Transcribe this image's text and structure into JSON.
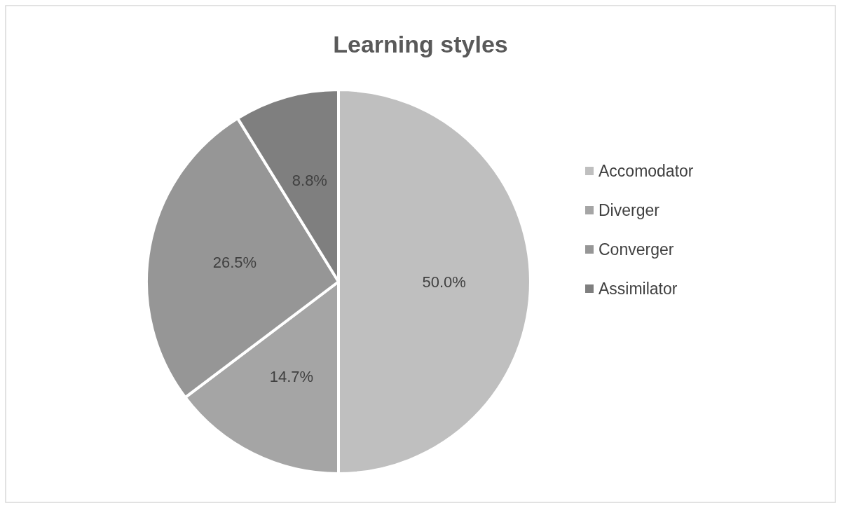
{
  "chart_data": {
    "type": "pie",
    "title": "Learning styles",
    "categories": [
      "Accomodator",
      "Diverger",
      "Converger",
      "Assimilator"
    ],
    "values": [
      50.0,
      14.7,
      26.5,
      8.8
    ],
    "colors": [
      "#bfbfbf",
      "#a5a5a5",
      "#969696",
      "#7f7f7f"
    ],
    "value_labels": [
      "50.0%",
      "14.7%",
      "26.5%",
      "8.8%"
    ],
    "legend": "right"
  }
}
